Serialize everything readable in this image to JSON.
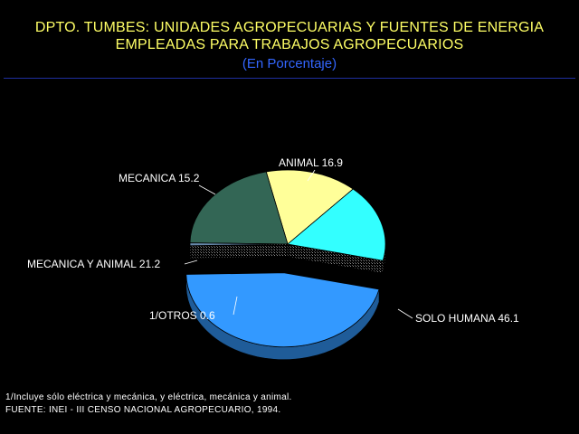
{
  "header": {
    "title_line1": "DPTO. TUMBES: UNIDADES AGROPECUARIAS Y FUENTES DE ENERGIA",
    "title_line2": "EMPLEADAS PARA TRABAJOS AGROPECUARIOS",
    "subtitle": "(En Porcentaje)"
  },
  "chart_data": {
    "type": "pie",
    "slices": [
      {
        "label": "ANIMAL",
        "value": 16.9,
        "color": "#33ffff"
      },
      {
        "label": "SOLO HUMANA",
        "value": 46.1,
        "color": "#3399ff"
      },
      {
        "label": "1/OTROS",
        "value": 0.6,
        "color": "#6688aa"
      },
      {
        "label": "MECANICA Y ANIMAL",
        "value": 21.2,
        "color": "#336655"
      },
      {
        "label": "MECANICA",
        "value": 15.2,
        "color": "#ffff99"
      }
    ],
    "exploded": "SOLO HUMANA"
  },
  "footnotes": {
    "note1": "1/Incluye sólo eléctrica y mecánica, y eléctrica, mecánica y animal.",
    "source": "FUENTE: INEI - III CENSO NACIONAL AGROPECUARIO, 1994."
  }
}
